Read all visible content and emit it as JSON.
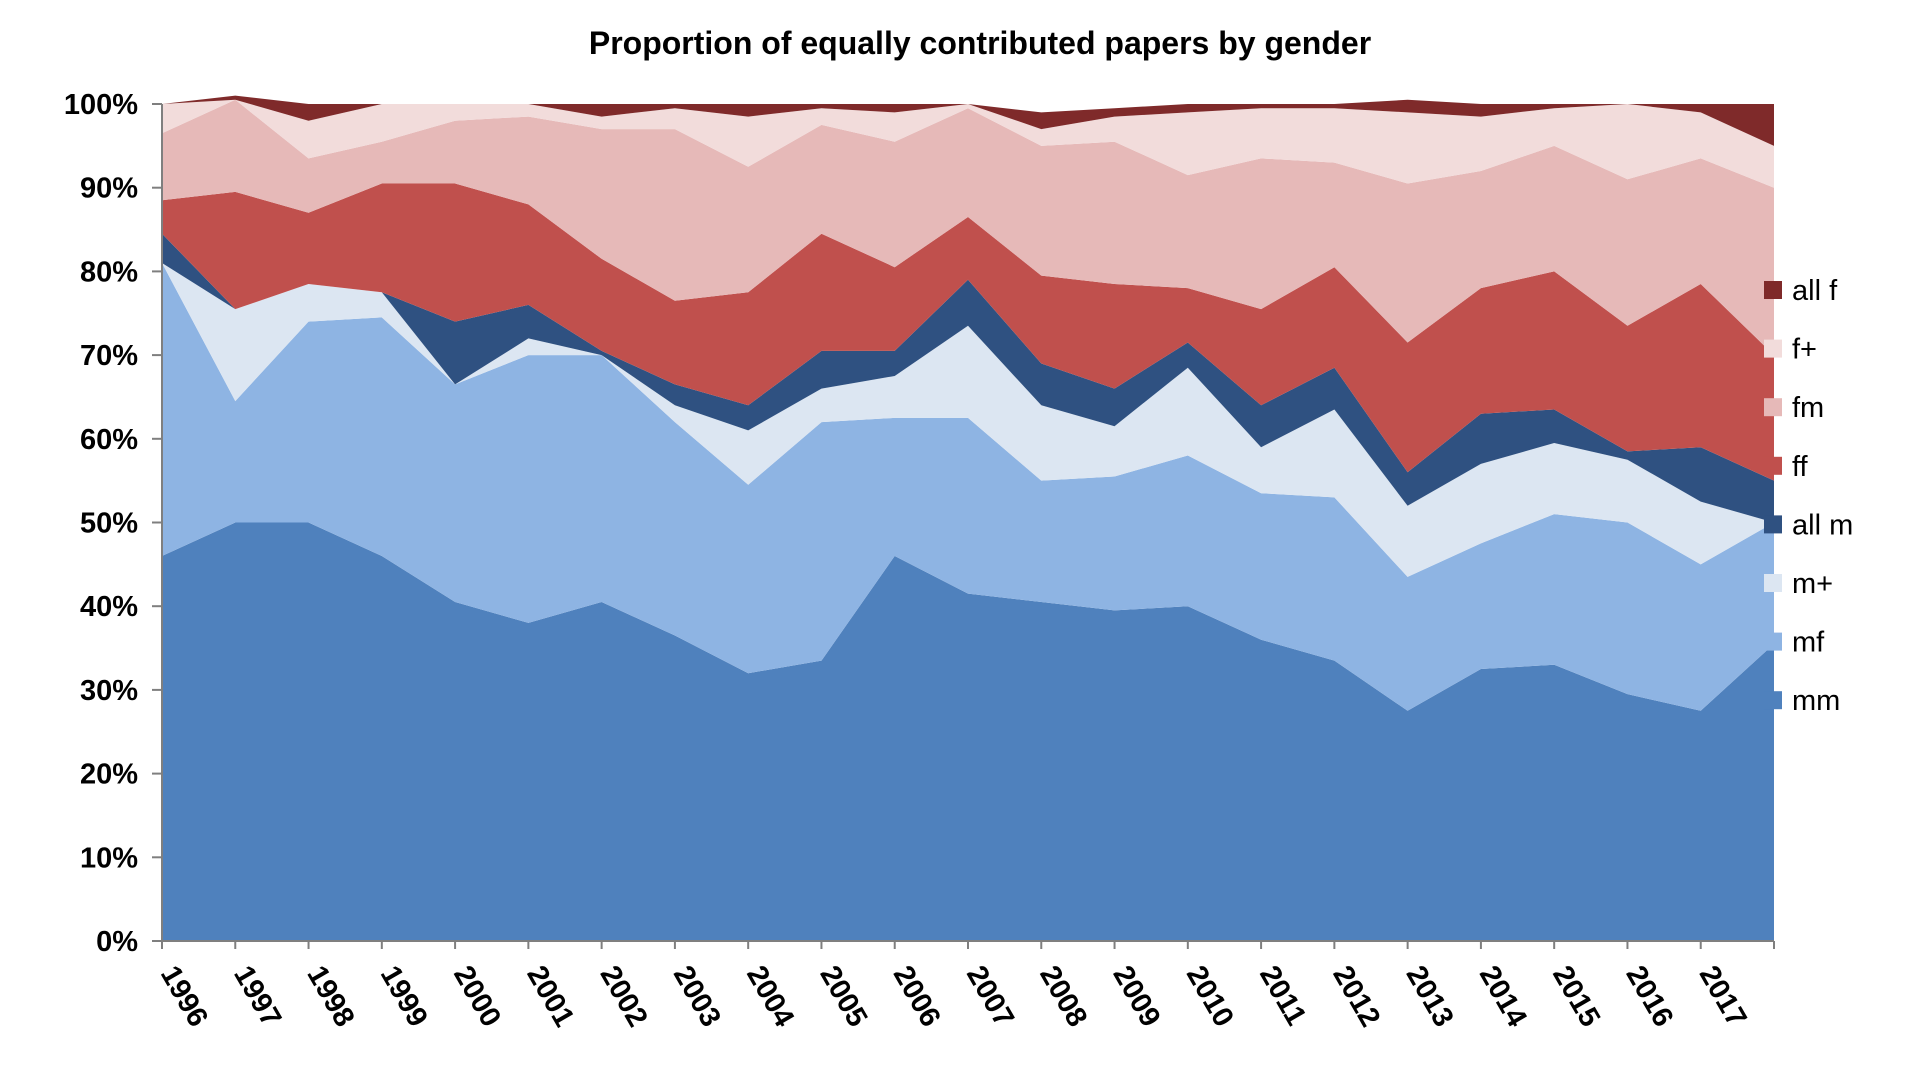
{
  "chart_data": {
    "type": "area",
    "stacked": true,
    "title": "Proportion of equally contributed papers by gender",
    "xlabel": "",
    "ylabel": "",
    "ylim": [
      0,
      100
    ],
    "y_ticks": [
      "0%",
      "10%",
      "20%",
      "30%",
      "40%",
      "50%",
      "60%",
      "70%",
      "80%",
      "90%",
      "100%"
    ],
    "x_tick_labels": [
      "1996",
      "1997",
      "1998",
      "1999",
      "2000",
      "2001",
      "2002",
      "2003",
      "2004",
      "2005",
      "2006",
      "2007",
      "2008",
      "2009",
      "2010",
      "2011",
      "2012",
      "2013",
      "2014",
      "2015",
      "2016",
      "2017"
    ],
    "x": [
      "1996",
      "1997",
      "1998",
      "1999",
      "2000",
      "2001",
      "2002",
      "2003",
      "2004",
      "2005",
      "2006",
      "2007",
      "2008",
      "2009",
      "2010",
      "2011",
      "2012",
      "2013",
      "2014",
      "2015",
      "2016",
      "2017",
      "2018"
    ],
    "legend_position": "right",
    "grid": false,
    "series": [
      {
        "name": "mm",
        "color": "#4F81BD",
        "values": [
          46.0,
          50.0,
          50.0,
          46.0,
          40.5,
          38.0,
          40.5,
          36.5,
          32.0,
          33.5,
          46.0,
          41.5,
          40.5,
          39.5,
          40.0,
          36.0,
          33.5,
          27.5,
          32.5,
          33.0,
          29.5,
          27.5,
          35.5
        ]
      },
      {
        "name": "mf",
        "color": "#8EB4E3",
        "values": [
          35.0,
          14.5,
          24.0,
          28.5,
          26.0,
          32.0,
          29.5,
          25.5,
          22.5,
          28.5,
          16.5,
          21.0,
          14.5,
          16.0,
          18.0,
          17.5,
          19.5,
          16.0,
          15.0,
          18.0,
          20.5,
          17.5,
          14.5
        ]
      },
      {
        "name": "m+",
        "color": "#DCE6F2",
        "values": [
          0.0,
          11.0,
          4.5,
          3.0,
          0.0,
          2.0,
          0.0,
          2.0,
          6.5,
          4.0,
          5.0,
          11.0,
          9.0,
          6.0,
          10.5,
          5.5,
          10.5,
          8.5,
          9.5,
          8.5,
          7.5,
          7.5,
          0.0
        ]
      },
      {
        "name": "all m",
        "color": "#2F5181",
        "values": [
          3.5,
          0.0,
          0.0,
          0.0,
          7.5,
          4.0,
          0.5,
          2.5,
          3.0,
          4.5,
          3.0,
          5.5,
          5.0,
          4.5,
          3.0,
          5.0,
          5.0,
          4.0,
          6.0,
          4.0,
          1.0,
          6.5,
          5.0
        ]
      },
      {
        "name": "ff",
        "color": "#C0504D",
        "values": [
          4.0,
          14.0,
          8.5,
          13.0,
          16.5,
          12.0,
          11.0,
          10.0,
          13.5,
          14.0,
          10.0,
          7.5,
          10.5,
          12.5,
          6.5,
          11.5,
          12.0,
          15.5,
          15.0,
          16.5,
          15.0,
          19.5,
          15.0
        ]
      },
      {
        "name": "fm",
        "color": "#E6B9B8",
        "values": [
          8.0,
          11.0,
          6.5,
          5.0,
          7.5,
          10.5,
          15.5,
          20.5,
          15.0,
          13.0,
          15.0,
          13.0,
          15.5,
          17.0,
          13.5,
          18.0,
          12.5,
          19.0,
          14.0,
          15.0,
          17.5,
          15.0,
          20.0
        ]
      },
      {
        "name": "f+",
        "color": "#F2DCDB",
        "values": [
          3.5,
          0.0,
          4.5,
          4.5,
          2.0,
          1.5,
          1.5,
          2.5,
          6.0,
          2.0,
          3.5,
          0.5,
          2.0,
          3.0,
          7.5,
          6.0,
          6.5,
          8.5,
          6.5,
          4.5,
          9.0,
          5.5,
          5.0
        ]
      },
      {
        "name": "all f",
        "color": "#7F2A2A",
        "values": [
          0.0,
          0.5,
          2.0,
          0.0,
          0.0,
          0.0,
          1.5,
          0.5,
          1.5,
          0.5,
          1.0,
          0.0,
          2.0,
          1.0,
          1.0,
          0.5,
          0.5,
          1.5,
          1.5,
          0.5,
          0.0,
          1.0,
          5.0
        ]
      }
    ],
    "legend_order": [
      "all f",
      "f+",
      "fm",
      "ff",
      "all m",
      "m+",
      "mf",
      "mm"
    ]
  }
}
